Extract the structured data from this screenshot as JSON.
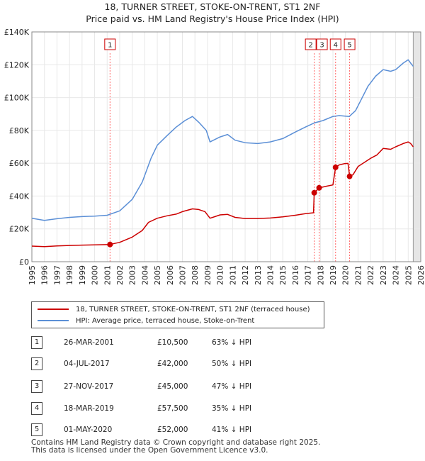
{
  "header": {
    "title": "18, TURNER STREET, STOKE-ON-TRENT, ST1 2NF",
    "subtitle": "Price paid vs. HM Land Registry's House Price Index (HPI)"
  },
  "chart_data": {
    "type": "line",
    "title": "18, TURNER STREET, STOKE-ON-TRENT, ST1 2NF",
    "subtitle": "Price paid vs. HM Land Registry's House Price Index (HPI)",
    "xlabel": "",
    "ylabel": "",
    "xlim": [
      1995,
      2026
    ],
    "ylim": [
      0,
      140000
    ],
    "x_ticks": [
      1995,
      1996,
      1997,
      1998,
      1999,
      2000,
      2001,
      2002,
      2003,
      2004,
      2005,
      2006,
      2007,
      2008,
      2009,
      2010,
      2011,
      2012,
      2013,
      2014,
      2015,
      2016,
      2017,
      2018,
      2019,
      2020,
      2021,
      2022,
      2023,
      2024,
      2025,
      2026
    ],
    "y_ticks": [
      {
        "value": 0,
        "label": "£0"
      },
      {
        "value": 20000,
        "label": "£20K"
      },
      {
        "value": 40000,
        "label": "£40K"
      },
      {
        "value": 60000,
        "label": "£60K"
      },
      {
        "value": 80000,
        "label": "£80K"
      },
      {
        "value": 100000,
        "label": "£100K"
      },
      {
        "value": 120000,
        "label": "£120K"
      },
      {
        "value": 140000,
        "label": "£140K"
      }
    ],
    "grid": true,
    "series": [
      {
        "name": "18, TURNER STREET, STOKE-ON-TRENT, ST1 2NF (terraced house)",
        "color": "#cc0000",
        "points": [
          [
            1995.0,
            9500
          ],
          [
            1996.0,
            9200
          ],
          [
            1997.0,
            9600
          ],
          [
            1998.0,
            9900
          ],
          [
            1999.0,
            10100
          ],
          [
            2000.0,
            10300
          ],
          [
            2001.23,
            10500
          ],
          [
            2002.0,
            11800
          ],
          [
            2003.0,
            15000
          ],
          [
            2003.8,
            19000
          ],
          [
            2004.3,
            24000
          ],
          [
            2005.0,
            26500
          ],
          [
            2005.8,
            28000
          ],
          [
            2006.5,
            29000
          ],
          [
            2007.0,
            30500
          ],
          [
            2007.8,
            32200
          ],
          [
            2008.3,
            31800
          ],
          [
            2008.8,
            30500
          ],
          [
            2009.2,
            26500
          ],
          [
            2009.6,
            27500
          ],
          [
            2010.0,
            28500
          ],
          [
            2010.6,
            28800
          ],
          [
            2011.2,
            27000
          ],
          [
            2012.0,
            26300
          ],
          [
            2013.0,
            26300
          ],
          [
            2014.0,
            26600
          ],
          [
            2015.0,
            27300
          ],
          [
            2016.0,
            28300
          ],
          [
            2016.8,
            29300
          ],
          [
            2017.45,
            29800
          ],
          [
            2017.51,
            42000
          ],
          [
            2017.9,
            45000
          ],
          [
            2018.5,
            46000
          ],
          [
            2019.0,
            46800
          ],
          [
            2019.21,
            57500
          ],
          [
            2019.5,
            59000
          ],
          [
            2019.9,
            59700
          ],
          [
            2020.2,
            59900
          ],
          [
            2020.33,
            52000
          ],
          [
            2020.6,
            53000
          ],
          [
            2021.0,
            58000
          ],
          [
            2022.0,
            63000
          ],
          [
            2022.5,
            65000
          ],
          [
            2023.0,
            69000
          ],
          [
            2023.6,
            68500
          ],
          [
            2024.0,
            70000
          ],
          [
            2024.6,
            72000
          ],
          [
            2025.0,
            73000
          ],
          [
            2025.2,
            72000
          ],
          [
            2025.4,
            70000
          ]
        ]
      },
      {
        "name": "HPI: Average price, terraced house, Stoke-on-Trent",
        "color": "#5b8fd6",
        "points": [
          [
            1995.0,
            26500
          ],
          [
            1996.0,
            25200
          ],
          [
            1997.0,
            26200
          ],
          [
            1998.0,
            27000
          ],
          [
            1999.0,
            27500
          ],
          [
            2000.0,
            27800
          ],
          [
            2001.0,
            28300
          ],
          [
            2002.0,
            31000
          ],
          [
            2003.0,
            38000
          ],
          [
            2003.8,
            48500
          ],
          [
            2004.5,
            63000
          ],
          [
            2005.0,
            71000
          ],
          [
            2005.8,
            77000
          ],
          [
            2006.5,
            82000
          ],
          [
            2007.2,
            86000
          ],
          [
            2007.8,
            88500
          ],
          [
            2008.3,
            85000
          ],
          [
            2008.9,
            80000
          ],
          [
            2009.2,
            73000
          ],
          [
            2009.6,
            74500
          ],
          [
            2010.0,
            76000
          ],
          [
            2010.6,
            77500
          ],
          [
            2011.2,
            74000
          ],
          [
            2012.0,
            72500
          ],
          [
            2013.0,
            72000
          ],
          [
            2014.0,
            73000
          ],
          [
            2015.0,
            75000
          ],
          [
            2016.0,
            79000
          ],
          [
            2016.8,
            82000
          ],
          [
            2017.5,
            84500
          ],
          [
            2018.2,
            86000
          ],
          [
            2019.0,
            88500
          ],
          [
            2019.5,
            89000
          ],
          [
            2020.3,
            88500
          ],
          [
            2020.8,
            92000
          ],
          [
            2021.3,
            99500
          ],
          [
            2021.8,
            107000
          ],
          [
            2022.4,
            113000
          ],
          [
            2023.0,
            117000
          ],
          [
            2023.6,
            116000
          ],
          [
            2024.0,
            117000
          ],
          [
            2024.6,
            121000
          ],
          [
            2025.0,
            123000
          ],
          [
            2025.2,
            121000
          ],
          [
            2025.4,
            119000
          ]
        ]
      }
    ],
    "sales": [
      {
        "id": "1",
        "year": 2001.23,
        "price": 10500
      },
      {
        "id": "2",
        "year": 2017.51,
        "price": 42000
      },
      {
        "id": "3",
        "year": 2017.9,
        "price": 45000
      },
      {
        "id": "4",
        "year": 2019.21,
        "price": 57500
      },
      {
        "id": "5",
        "year": 2020.33,
        "price": 52000
      }
    ],
    "colors": {
      "price_paid": "#cc0000",
      "hpi": "#5b8fd6",
      "grid": "#e8e8e8",
      "sale_marker_line": "#ff6666",
      "forecast_shade": "#e6e6e6"
    }
  },
  "legend": {
    "items": [
      {
        "label": "18, TURNER STREET, STOKE-ON-TRENT, ST1 2NF (terraced house)",
        "color": "#cc0000"
      },
      {
        "label": "HPI: Average price, terraced house, Stoke-on-Trent",
        "color": "#5b8fd6"
      }
    ]
  },
  "sales_table": [
    {
      "num": "1",
      "date": "26-MAR-2001",
      "price": "£10,500",
      "hpi": "63% ↓ HPI"
    },
    {
      "num": "2",
      "date": "04-JUL-2017",
      "price": "£42,000",
      "hpi": "50% ↓ HPI"
    },
    {
      "num": "3",
      "date": "27-NOV-2017",
      "price": "£45,000",
      "hpi": "47% ↓ HPI"
    },
    {
      "num": "4",
      "date": "18-MAR-2019",
      "price": "£57,500",
      "hpi": "35% ↓ HPI"
    },
    {
      "num": "5",
      "date": "01-MAY-2020",
      "price": "£52,000",
      "hpi": "41% ↓ HPI"
    }
  ],
  "footer": {
    "line1": "Contains HM Land Registry data © Crown copyright and database right 2025.",
    "line2": "This data is licensed under the Open Government Licence v3.0."
  }
}
